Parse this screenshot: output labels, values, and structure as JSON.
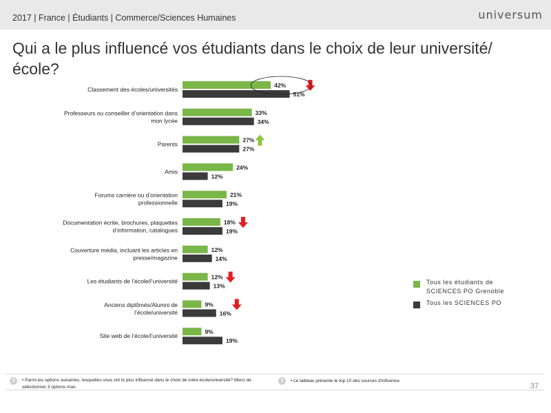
{
  "header": {
    "breadcrumb": "2017 | France | Étudiants | Commerce/Sciences Humaines",
    "logo": "universum"
  },
  "title": "Qui a le plus influencé vos étudiants dans le choix de leur université/école?",
  "colors": {
    "series1": "#7ab648",
    "series2": "#3b3b3b",
    "arrow_down": "#e31e24",
    "arrow_up": "#8cc63f"
  },
  "chart_data": {
    "type": "bar",
    "orientation": "horizontal",
    "categories": [
      "Classement des écoles/universités",
      "Professeurs ou conseiller d’orientation dans mon lycée",
      "Parents",
      "Amis",
      "Forums carrière ou d’orientation professionnelle",
      "Documentation écrite, brochures, plaquettes d’information, catalogues",
      "Couverture média, incluant les articles en presse/magazine",
      "Les étudiants de l’école/l’université",
      "Anciens diplômés/Alumni de l’école/université",
      "Site web de l’école/l’université"
    ],
    "series": [
      {
        "name": "Tous les étudiants de SCIENCES PO Grenoble",
        "values": [
          42,
          33,
          27,
          24,
          21,
          18,
          12,
          12,
          9,
          9
        ]
      },
      {
        "name": "Tous les SCIENCES PO",
        "values": [
          51,
          34,
          27,
          12,
          19,
          19,
          14,
          13,
          16,
          19
        ]
      }
    ],
    "value_suffix": "%",
    "indicators": [
      "down",
      "none",
      "up",
      "none",
      "none",
      "down",
      "none",
      "down",
      "down",
      "none"
    ],
    "highlight": 0
  },
  "footer": {
    "note_left": "• Parmi les options suivantes, lesquelles vous ont le plus influencé dans le choix de votre école/université? Merci de sélectionner 3 options max.",
    "note_right": "• Le tableau présente le top 10 des sources d'influence.",
    "page": "37"
  }
}
